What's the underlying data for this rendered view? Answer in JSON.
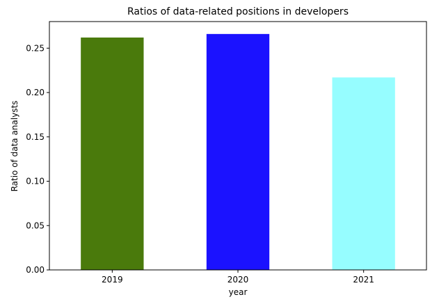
{
  "chart_data": {
    "type": "bar",
    "title": "Ratios of data-related positions in developers",
    "xlabel": "year",
    "ylabel": "Ratio of data analysts",
    "categories": [
      "2019",
      "2020",
      "2021"
    ],
    "values": [
      0.262,
      0.266,
      0.217
    ],
    "colors": [
      "#4a7a0c",
      "#1b12ff",
      "#96fdff"
    ],
    "ylim": [
      0,
      0.28
    ],
    "yticks": [
      0.0,
      0.05,
      0.1,
      0.15,
      0.2,
      0.25
    ],
    "ytick_labels": [
      "0.00",
      "0.05",
      "0.10",
      "0.15",
      "0.20",
      "0.25"
    ],
    "grid": false,
    "legend": "none"
  }
}
